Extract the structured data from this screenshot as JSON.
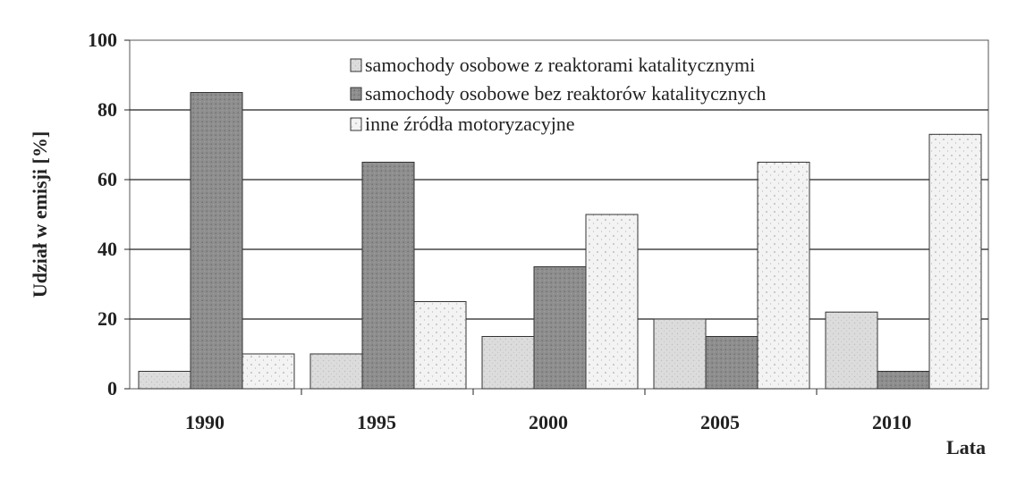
{
  "chart_data": {
    "type": "bar",
    "categories": [
      "1990",
      "1995",
      "2000",
      "2005",
      "2010"
    ],
    "series": [
      {
        "name": "samochody osobowe z reaktorami katalitycznymi",
        "values": [
          5,
          10,
          15,
          20,
          22
        ],
        "color": "#d8d8d8"
      },
      {
        "name": "samochody osobowe bez reaktorów katalitycznych",
        "values": [
          85,
          65,
          35,
          15,
          5
        ],
        "color": "#8a8a8a"
      },
      {
        "name": "inne źródła motoryzacyjne",
        "values": [
          10,
          25,
          50,
          65,
          73
        ],
        "color": "#f1f1f1"
      }
    ],
    "ylabel": "Udział w emisji [%]",
    "xlabel": "Lata",
    "ylim": [
      0,
      100
    ],
    "yticks": [
      "0",
      "20",
      "40",
      "60",
      "80",
      "100"
    ],
    "grid": true,
    "legend": "top-center"
  }
}
